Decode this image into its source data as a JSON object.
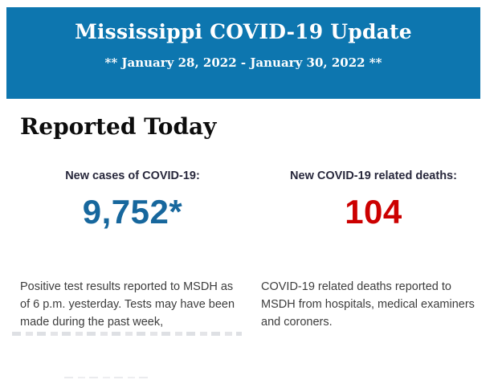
{
  "header": {
    "title": "Mississippi COVID-19 Update",
    "date_range": "** January 28, 2022 - January 30, 2022 **",
    "background_color": "#0d76af",
    "text_color": "#ffffff"
  },
  "section": {
    "heading": "Reported Today"
  },
  "stats": [
    {
      "label": "New cases of COVID-19:",
      "value": "9,752*",
      "value_color": "#17679d",
      "description": "Positive test results reported to MSDH as of 6 p.m. yesterday. Tests may have been made during the past week,"
    },
    {
      "label": "New COVID-19 related deaths:",
      "value": "104",
      "value_color": "#cc0000",
      "description": "COVID-19 related deaths reported to MSDH from hospitals, medical examiners and coroners."
    }
  ]
}
